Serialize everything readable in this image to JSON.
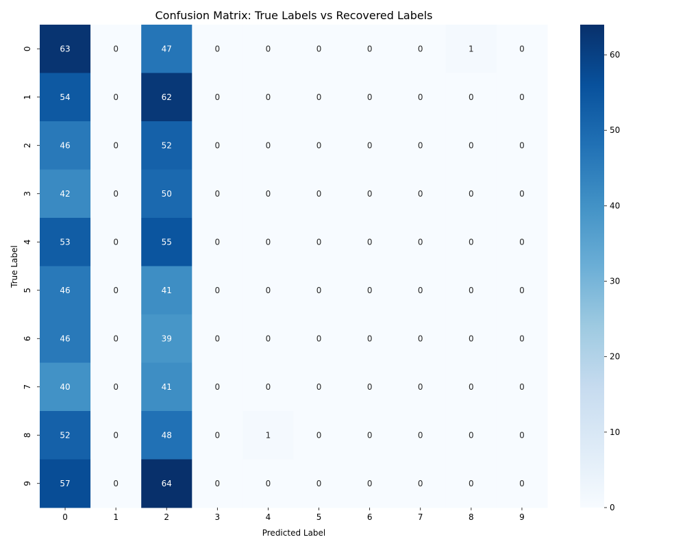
{
  "chart_data": {
    "type": "heatmap",
    "title": "Confusion Matrix: True Labels vs Recovered Labels",
    "xlabel": "Predicted Label",
    "ylabel": "True Label",
    "x_categories": [
      "0",
      "1",
      "2",
      "3",
      "4",
      "5",
      "6",
      "7",
      "8",
      "9"
    ],
    "y_categories": [
      "0",
      "1",
      "2",
      "3",
      "4",
      "5",
      "6",
      "7",
      "8",
      "9"
    ],
    "values": [
      [
        63,
        0,
        47,
        0,
        0,
        0,
        0,
        0,
        1,
        0
      ],
      [
        54,
        0,
        62,
        0,
        0,
        0,
        0,
        0,
        0,
        0
      ],
      [
        46,
        0,
        52,
        0,
        0,
        0,
        0,
        0,
        0,
        0
      ],
      [
        42,
        0,
        50,
        0,
        0,
        0,
        0,
        0,
        0,
        0
      ],
      [
        53,
        0,
        55,
        0,
        0,
        0,
        0,
        0,
        0,
        0
      ],
      [
        46,
        0,
        41,
        0,
        0,
        0,
        0,
        0,
        0,
        0
      ],
      [
        46,
        0,
        39,
        0,
        0,
        0,
        0,
        0,
        0,
        0
      ],
      [
        40,
        0,
        41,
        0,
        0,
        0,
        0,
        0,
        0,
        0
      ],
      [
        52,
        0,
        48,
        0,
        1,
        0,
        0,
        0,
        0,
        0
      ],
      [
        57,
        0,
        64,
        0,
        0,
        0,
        0,
        0,
        0,
        0
      ]
    ],
    "colormap": "Blues",
    "color_range": [
      0,
      64
    ],
    "colorbar_ticks": [
      "0",
      "10",
      "20",
      "30",
      "40",
      "50",
      "60"
    ],
    "colorbar_tick_values": [
      0,
      10,
      20,
      30,
      40,
      50,
      60
    ],
    "annotations_shown": true,
    "grid": false
  }
}
